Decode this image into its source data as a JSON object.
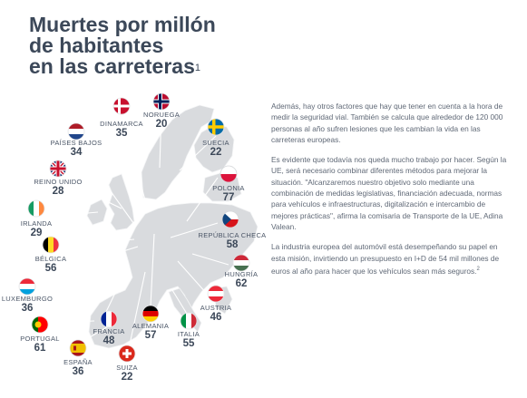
{
  "title": {
    "lines": [
      "Muertes por millón",
      "de habitantes",
      "en las carreteras"
    ],
    "footnote": "1"
  },
  "countries": [
    {
      "id": "noruega",
      "name": "NORUEGA",
      "value": "20"
    },
    {
      "id": "dinamarca",
      "name": "DINAMARCA",
      "value": "35"
    },
    {
      "id": "suecia",
      "name": "SUECIA",
      "value": "22"
    },
    {
      "id": "paises-bajos",
      "name": "PAÍSES BAJOS",
      "value": "34"
    },
    {
      "id": "reino-unido",
      "name": "REINO UNIDO",
      "value": "28"
    },
    {
      "id": "polonia",
      "name": "POLONIA",
      "value": "77"
    },
    {
      "id": "irlanda",
      "name": "IRLANDA",
      "value": "29"
    },
    {
      "id": "republica-checa",
      "name": "REPÚBLICA CHECA",
      "value": "58"
    },
    {
      "id": "belgica",
      "name": "BÉLGICA",
      "value": "56"
    },
    {
      "id": "hungria",
      "name": "HUNGRÍA",
      "value": "62"
    },
    {
      "id": "luxemburgo",
      "name": "LUXEMBURGO",
      "value": "36"
    },
    {
      "id": "austria",
      "name": "AUSTRIA",
      "value": "46"
    },
    {
      "id": "francia",
      "name": "FRANCIA",
      "value": "48"
    },
    {
      "id": "alemania",
      "name": "ALEMANIA",
      "value": "57"
    },
    {
      "id": "italia",
      "name": "ITALIA",
      "value": "55"
    },
    {
      "id": "portugal",
      "name": "PORTUGAL",
      "value": "61"
    },
    {
      "id": "espana",
      "name": "ESPAÑA",
      "value": "36"
    },
    {
      "id": "suiza",
      "name": "SUIZA",
      "value": "22"
    }
  ],
  "paragraphs": [
    "Además, hay otros factores que hay que tener en cuenta a la hora de medir la seguridad vial. También se calcula que alrededor de 120 000 personas al año sufren lesiones que les cambian la vida en las carreteras europeas.",
    "Es evidente que todavía nos queda mucho trabajo por hacer. Según la UE, será necesario combinar diferentes métodos para mejorar la situación. \"Alcanzaremos nuestro objetivo solo mediante una combinación de medidas legislativas, financiación adecuada, normas para vehículos e infraestructuras, digitalización e intercambio de mejores prácticas\", afirma la comisaria de Transporte de la UE, Adina Valean.",
    "La industria europea del automóvil está desempeñando su papel en esta misión, invirtiendo un presupuesto en I+D de 54 mil millones de euros al año para hacer que los vehículos sean más seguros."
  ],
  "paragraph_footnote": "2",
  "colors": {
    "title": "#3c4859",
    "map": "#d9dbde",
    "leader": "#ffffff",
    "text": "#5f6876"
  }
}
